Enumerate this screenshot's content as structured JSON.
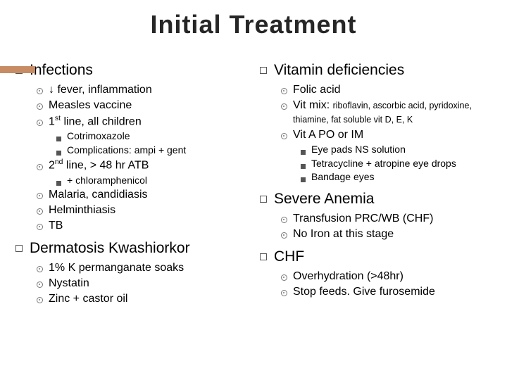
{
  "title": "Initial Treatment",
  "accent_color": "#c88c64",
  "left": {
    "infections": {
      "heading": "Infections",
      "items": [
        {
          "text": "↓ fever, inflammation"
        },
        {
          "text": "Measles vaccine"
        },
        {
          "text_html": "1<span class='sup'>st</span> line, all children",
          "sub": [
            {
              "text": "Cotrimoxazole"
            },
            {
              "text": "Complications: ampi + gent"
            }
          ]
        },
        {
          "text_html": "2<span class='sup'>nd</span> line, > 48 hr ATB",
          "sub": [
            {
              "text": "+ chloramphenicol"
            }
          ]
        },
        {
          "text": "Malaria, candidiasis"
        },
        {
          "text": "Helminthiasis"
        },
        {
          "text": "TB"
        }
      ]
    },
    "dermatosis": {
      "heading": "Dermatosis Kwashiorkor",
      "items": [
        {
          "text": "1% K permanganate soaks"
        },
        {
          "text": "Nystatin"
        },
        {
          "text": "Zinc + castor oil"
        }
      ]
    }
  },
  "right": {
    "vitamin": {
      "heading": "Vitamin deficiencies",
      "items": [
        {
          "text": "Folic acid"
        },
        {
          "text_html": "Vit mix: <span class='small-note'>riboflavin, ascorbic acid, pyridoxine, thiamine, fat soluble vit D, E, K</span>"
        },
        {
          "text": "Vit A PO or IM",
          "sub": [
            {
              "text": "Eye pads NS solution"
            },
            {
              "text": "Tetracycline + atropine eye drops"
            },
            {
              "text": "Bandage eyes"
            }
          ]
        }
      ]
    },
    "anemia": {
      "heading": "Severe Anemia",
      "items": [
        {
          "text": "Transfusion PRC/WB (CHF)"
        },
        {
          "text": "No Iron at this stage"
        }
      ]
    },
    "chf": {
      "heading": "CHF",
      "items": [
        {
          "text": "Overhydration (>48hr)"
        },
        {
          "text": "Stop feeds. Give furosemide"
        }
      ]
    }
  }
}
